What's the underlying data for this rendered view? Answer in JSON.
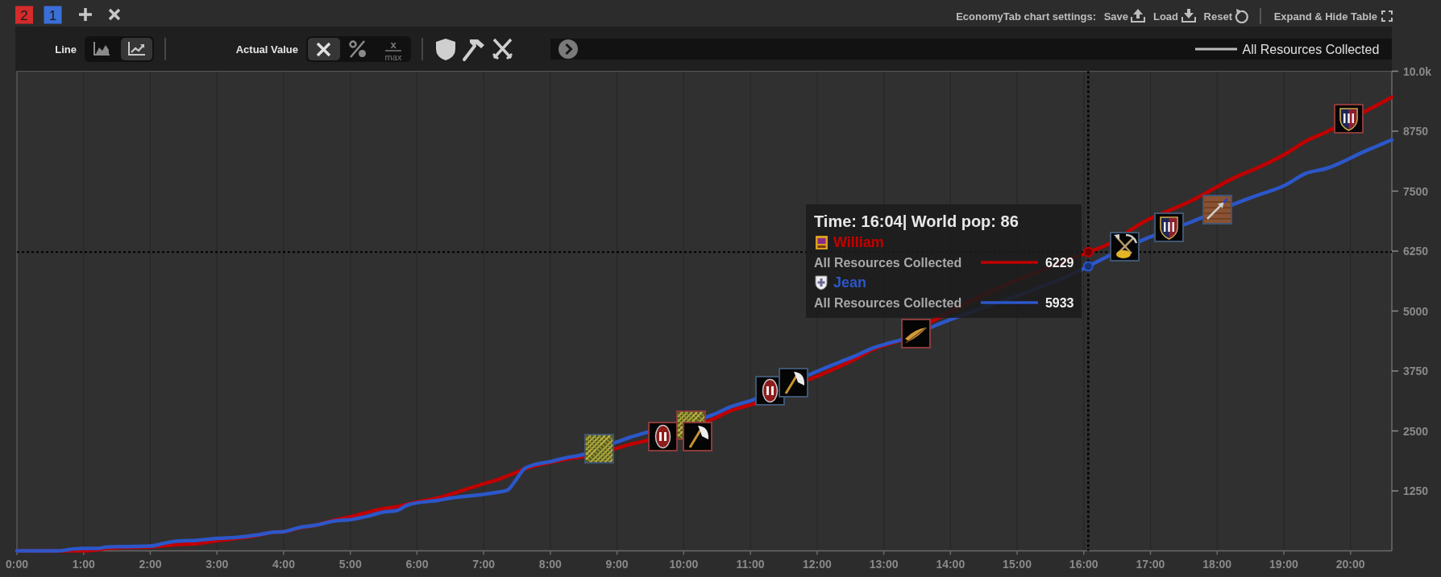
{
  "chart_data": {
    "type": "line",
    "xlim": [
      0,
      20.62
    ],
    "xticks": [
      {
        "value": 0,
        "label": "0:00"
      },
      {
        "value": 1,
        "label": "1:00"
      },
      {
        "value": 2,
        "label": "2:00"
      },
      {
        "value": 3,
        "label": "3:00"
      },
      {
        "value": 4,
        "label": "4:00"
      },
      {
        "value": 5,
        "label": "5:00"
      },
      {
        "value": 6,
        "label": "6:00"
      },
      {
        "value": 7,
        "label": "7:00"
      },
      {
        "value": 8,
        "label": "8:00"
      },
      {
        "value": 9,
        "label": "9:00"
      },
      {
        "value": 10,
        "label": "10:00"
      },
      {
        "value": 11,
        "label": "11:00"
      },
      {
        "value": 12,
        "label": "12:00"
      },
      {
        "value": 13,
        "label": "13:00"
      },
      {
        "value": 14,
        "label": "14:00"
      },
      {
        "value": 15,
        "label": "15:00"
      },
      {
        "value": 16,
        "label": "16:00"
      },
      {
        "value": 17,
        "label": "17:00"
      },
      {
        "value": 18,
        "label": "18:00"
      },
      {
        "value": 19,
        "label": "19:00"
      },
      {
        "value": 20,
        "label": "20:00"
      }
    ],
    "ylim": [
      0,
      10000
    ],
    "yticks": [
      1250,
      2500,
      3750,
      5000,
      6250,
      7500,
      8750,
      {
        "value": 10000,
        "label": "10.0k"
      }
    ],
    "grid": "x",
    "x": [
      0,
      0.6,
      0.75,
      0.85,
      1.0,
      1.2,
      1.35,
      1.6,
      2.0,
      2.25,
      2.4,
      2.7,
      3.0,
      3.3,
      3.6,
      3.85,
      4.0,
      4.25,
      4.5,
      4.75,
      5.0,
      5.25,
      5.5,
      5.7,
      5.85,
      6.0,
      6.3,
      6.5,
      7.0,
      7.2,
      7.35,
      7.48,
      7.6,
      7.77,
      8.0,
      8.23,
      8.47,
      9.0,
      9.2,
      9.42,
      10.46,
      10.7,
      11.04,
      11.93,
      12.1,
      12.35,
      12.6,
      12.84,
      13.05,
      13.24,
      13.76,
      16.067,
      16.3,
      16.9,
      17.6,
      18.29,
      18.58,
      19.03,
      19.33,
      19.63,
      20.23,
      20.45,
      20.62
    ],
    "series": [
      {
        "name": "William",
        "color": "#c00000",
        "values": [
          0,
          0,
          0,
          0,
          0,
          20,
          50,
          70,
          80,
          110,
          130,
          150,
          210,
          260,
          320,
          390,
          400,
          480,
          540,
          640,
          710,
          800,
          880,
          920,
          970,
          1020,
          1100,
          1180,
          1400,
          1480,
          1560,
          1630,
          1700,
          1770,
          1840,
          1910,
          1960,
          2140,
          2220,
          2290,
          2760,
          2920,
          3060,
          3600,
          3700,
          3850,
          4020,
          4200,
          4300,
          4380,
          4810,
          6229,
          6350,
          6860,
          7290,
          7800,
          7970,
          8280,
          8540,
          8730,
          9170,
          9330,
          9460
        ]
      },
      {
        "name": "Jean",
        "color": "#2c57c9",
        "values": [
          0,
          0,
          20,
          40,
          50,
          50,
          80,
          90,
          100,
          170,
          200,
          220,
          260,
          280,
          330,
          390,
          400,
          490,
          540,
          620,
          650,
          720,
          810,
          840,
          950,
          1000,
          1050,
          1100,
          1180,
          1220,
          1260,
          1470,
          1700,
          1800,
          1860,
          1940,
          2000,
          2270,
          2370,
          2460,
          2850,
          3000,
          3150,
          3700,
          3800,
          3940,
          4080,
          4230,
          4320,
          4390,
          4690,
          5933,
          6100,
          6490,
          6850,
          7250,
          7400,
          7630,
          7870,
          7970,
          8340,
          8470,
          8570
        ]
      }
    ],
    "ref_lines": [
      {
        "axis": "x",
        "value": 16.067,
        "color": "#000000",
        "line_style": "dotted"
      },
      {
        "axis": "y",
        "value": 6229,
        "color": "#000000",
        "line_style": "dotted"
      }
    ],
    "annotations": [
      "2",
      "1",
      "Line",
      "Actual Value",
      "EconomyTab chart settings:",
      "Save",
      "Load",
      "Reset",
      "Expand & Hide Table",
      "All Resources Collected",
      "Time: 16:04| World pop: 86",
      "All Resources Collected",
      {
        "text": "6229",
        "x": 16.067,
        "y": 6229
      },
      "All Resources Collected",
      {
        "text": "5933",
        "x": 16.067,
        "y": 5933
      },
      "x",
      "max"
    ]
  }
}
